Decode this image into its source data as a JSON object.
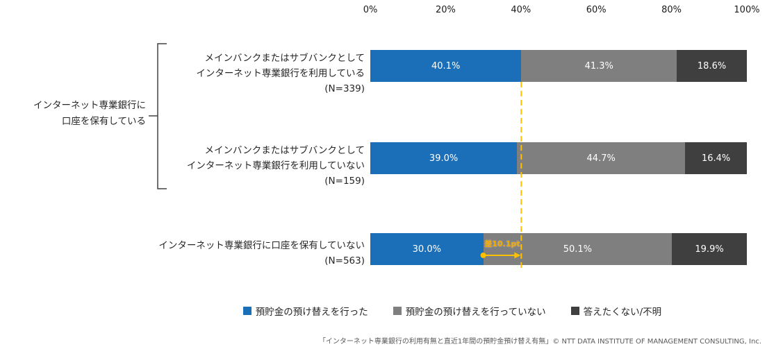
{
  "chart_data": {
    "type": "bar",
    "orientation": "horizontal",
    "stacked": true,
    "value_axis": {
      "position": "top",
      "min": 0,
      "max": 100,
      "ticks": [
        "0%",
        "20%",
        "40%",
        "60%",
        "80%",
        "100%"
      ]
    },
    "series": [
      {
        "name": "預貯金の預け替えを行った",
        "color": "#1B6FB9",
        "values": [
          40.1,
          39.0,
          30.0
        ]
      },
      {
        "name": "預貯金の預け替えを行っていない",
        "color": "#7F7F7F",
        "values": [
          41.3,
          44.7,
          50.1
        ]
      },
      {
        "name": "答えたくない/不明",
        "color": "#3F3F3F",
        "values": [
          18.6,
          16.4,
          19.9
        ]
      }
    ],
    "categories": [
      {
        "lines": [
          "メインバンクまたはサブバンクとして",
          "インターネット専業銀行を利用している"
        ],
        "n_label": "(N=339)"
      },
      {
        "lines": [
          "メインバンクまたはサブバンクとして",
          "インターネット専業銀行を利用していない"
        ],
        "n_label": "(N=159)"
      },
      {
        "lines": [
          "インターネット専業銀行に口座を保有していない"
        ],
        "n_label": "(N=563)"
      }
    ],
    "group": {
      "lines": [
        "インターネット専業銀行に",
        "口座を保有している"
      ],
      "applies_to_rows": [
        0,
        1
      ]
    },
    "reference_line": {
      "value": 40.1,
      "color": "#FFC000",
      "style": "dashed"
    },
    "annotation": {
      "text": "差10.1pt",
      "from_value": 30.0,
      "to_value": 40.1,
      "row": 2,
      "color": "#F2A900"
    },
    "legend": {
      "position": "bottom",
      "items": [
        "預貯金の預け替えを行った",
        "預貯金の預け替えを行っていない",
        "答えたくない/不明"
      ]
    },
    "footer": "「インターネット専業銀行の利用有無と直近1年間の預貯金預け替え有無」© NTT DATA INSTITUTE OF MANAGEMENT CONSULTING, Inc."
  }
}
